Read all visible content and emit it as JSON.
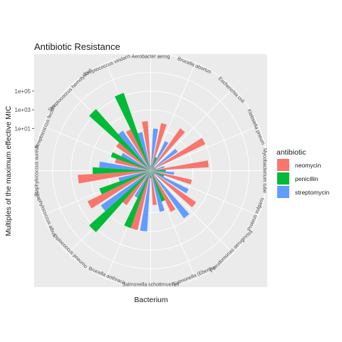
{
  "chart_data": {
    "type": "bar",
    "coord": "polar",
    "title": "Antibiotic Resistance",
    "xlabel": "Bacterium",
    "ylabel": "Multiples of the maximum effective MIC",
    "y_scale": "log10",
    "yticks": [
      {
        "value": 100000,
        "label": "1e+05"
      },
      {
        "value": 1000,
        "label": "1e+03"
      },
      {
        "value": 10,
        "label": "1e+01"
      }
    ],
    "ylim": [
      0.0003,
      1000000000
    ],
    "legend_title": "antibiotic",
    "legend_position": "right",
    "grid": true,
    "categories": [
      "Aerobacter aerogenes",
      "Brucella abortus",
      "Escherichia coli",
      "Klebsiella pneumoniae",
      "Mycobacterium tuberculosis",
      "Proteus vulgaris",
      "Pseudomonas aeruginosa",
      "Salmonella (Eberthella) typhosa",
      "Salmonella schottmuelleri",
      "Brucella anthracis",
      "Diplococcus pneumoniae",
      "Staphylococcus albus",
      "Staphylococcus aureus",
      "Streptococcus fecalis",
      "Streptococcus hemolyticus",
      "Streptococcus viridans"
    ],
    "category_labels": [
      "Aerobacter aerog",
      "Brucella abortus",
      "Escherichia coli",
      "Klebsiella pneum",
      "Mycobacterium tube",
      "Proteus vulgaris",
      "Pseudomonas aeruginosa",
      "Salmonella (Eberthe",
      "Salmonella schottmuelleri",
      "Brucella anthracis",
      "Diplococcus pneumo",
      "Staphylococcus albus",
      "Staphylococcus aureus",
      "Streptococcus fecalis",
      "Streptococcus hemolyticus",
      "Streptococcus viridans"
    ],
    "series": [
      {
        "name": "neomycin",
        "color": "#F8766D",
        "values": [
          62.5,
          50,
          100,
          1000,
          500,
          10,
          250,
          25,
          1.5,
          1000,
          10,
          10000,
          20000,
          2.5,
          10,
          25
        ]
      },
      {
        "name": "penicillin",
        "color": "#00BA38",
        "values": [
          0.00115,
          0.01,
          0.00099,
          0.00115,
          0.0125,
          0.01,
          0.00117,
          1,
          0.002,
          1000,
          200000,
          200,
          500,
          10,
          200000,
          200000
        ]
      },
      {
        "name": "streptomycin",
        "color": "#619CFF",
        "values": [
          10,
          1,
          1,
          0.01,
          0.1,
          10,
          500,
          10,
          1000,
          0.5,
          1000,
          1,
          100,
          1,
          50,
          5
        ]
      }
    ]
  }
}
